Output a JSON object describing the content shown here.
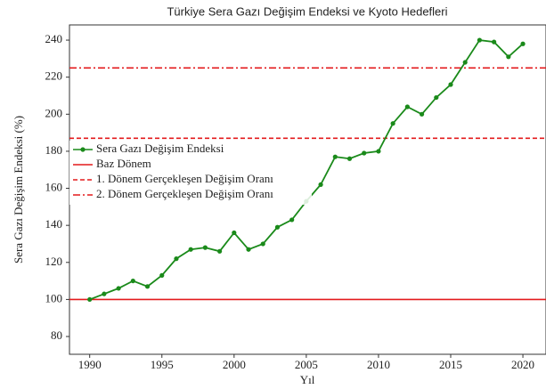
{
  "chart_data": {
    "type": "line",
    "title": "Türkiye Sera Gazı Değişim Endeksi ve Kyoto Hedefleri",
    "x_label": "Yıl",
    "y_label": "Sera Gazı Değişim Endeksi (%)",
    "x": [
      1990,
      1991,
      1992,
      1993,
      1994,
      1995,
      1996,
      1997,
      1998,
      1999,
      2000,
      2001,
      2002,
      2003,
      2004,
      2005,
      2006,
      2007,
      2008,
      2009,
      2010,
      2011,
      2012,
      2013,
      2014,
      2015,
      2016,
      2017,
      2018,
      2019,
      2020
    ],
    "series": [
      {
        "name": "Sera Gazı Değişim Endeksi",
        "color": "#1a8a1a",
        "values": [
          100,
          103,
          106,
          110,
          107,
          113,
          122,
          127,
          128,
          126,
          136,
          127,
          130,
          139,
          143,
          153,
          162,
          177,
          176,
          179,
          180,
          195,
          204,
          200,
          209,
          216,
          228,
          240,
          239,
          231,
          238
        ]
      }
    ],
    "reference_lines": [
      {
        "name": "Baz Dönem",
        "value": 100,
        "color": "#e31a1c",
        "style": "solid"
      },
      {
        "name": "1. Dönem Gerçekleşen Değişim Oranı",
        "value": 187,
        "color": "#e31a1c",
        "style": "dashed"
      },
      {
        "name": "2. Dönem Gerçekleşen Değişim Oranı",
        "value": 225,
        "color": "#e31a1c",
        "style": "dashdot"
      }
    ],
    "xlim": [
      1988.6,
      2021.6
    ],
    "ylim": [
      70.4,
      248.2
    ],
    "xticks": [
      1990,
      1995,
      2000,
      2005,
      2010,
      2015,
      2020
    ],
    "yticks": [
      80,
      100,
      120,
      140,
      160,
      180,
      200,
      220,
      240
    ],
    "legend": "center left"
  }
}
